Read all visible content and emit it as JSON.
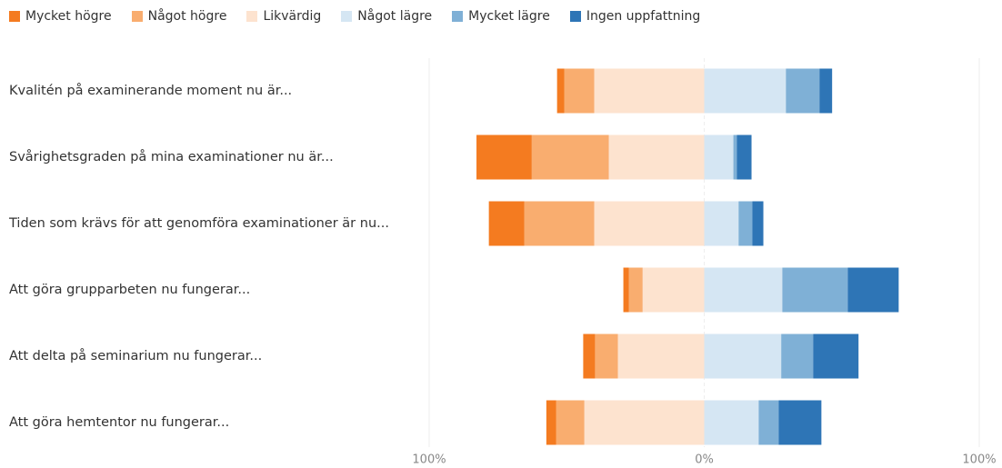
{
  "chart_data": {
    "type": "diverging-bar",
    "categories": [
      "Kvalitén på examinerande moment nu är...",
      "Svårighetsgraden på mina examinationer nu är...",
      "Tiden som krävs för att genomföra examinationer är nu...",
      "Att göra grupparbeten nu fungerar...",
      "Att delta på seminarium nu fungerar...",
      "Att göra hemtentor nu fungerar..."
    ],
    "series": [
      {
        "name": "Mycket högre",
        "color": "#f47b20",
        "values": [
          -2.6,
          -20.1,
          -12.9,
          -2,
          -4.3,
          -3.6
        ]
      },
      {
        "name": "Något högre",
        "color": "#f9ad6f",
        "values": [
          -10.9,
          -28,
          -25.4,
          -5,
          -8.3,
          -10.2
        ]
      },
      {
        "name": "Likvärdig",
        "color": "#fde3cf",
        "values": [
          -40,
          -34.7,
          -40,
          -22.4,
          -31.4,
          -43.6
        ]
      },
      {
        "name": "Något lägre",
        "color": "#d5e6f3",
        "values": [
          29.7,
          10.6,
          12.5,
          28.4,
          28,
          19.8
        ]
      },
      {
        "name": "Mycket lägre",
        "color": "#7fb0d6",
        "values": [
          12.2,
          1.3,
          5,
          23.8,
          11.6,
          7.3
        ]
      },
      {
        "name": "Ingen uppfattning",
        "color": "#2e75b6",
        "values": [
          4.6,
          5.3,
          4,
          18.5,
          16.5,
          15.5
        ]
      }
    ],
    "xlim": [
      -100,
      100
    ],
    "xticks": [
      {
        "value": -100,
        "label": "100%"
      },
      {
        "value": 0,
        "label": "0%"
      },
      {
        "value": 100,
        "label": "100%"
      }
    ],
    "grid": true,
    "legend": "top"
  }
}
